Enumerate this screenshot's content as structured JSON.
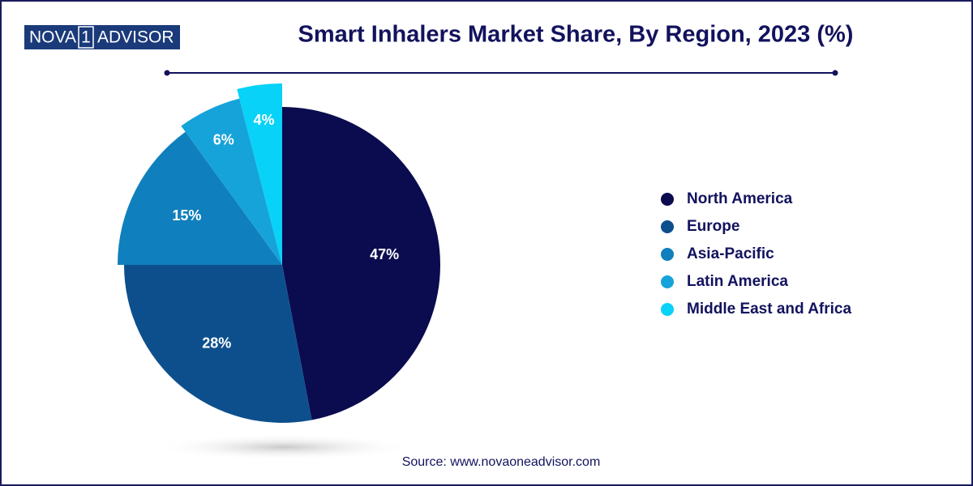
{
  "brand": {
    "left": "NOVA",
    "mark": "1",
    "right": "ADVISOR"
  },
  "chart_data": {
    "type": "pie",
    "title": "Smart Inhalers Market Share, By Region, 2023 (%)",
    "categories": [
      "North America",
      "Europe",
      "Asia-Pacific",
      "Latin America",
      "Middle East and Africa"
    ],
    "values": [
      47,
      28,
      15,
      6,
      4
    ],
    "value_labels": [
      "47%",
      "28%",
      "15%",
      "6%",
      "4%"
    ],
    "colors": [
      "#0b0b4f",
      "#0d4f8c",
      "#0f7fbd",
      "#16a3d9",
      "#08d2f7"
    ],
    "legend": "right",
    "source": "Source: www.novaoneadvisor.com"
  }
}
